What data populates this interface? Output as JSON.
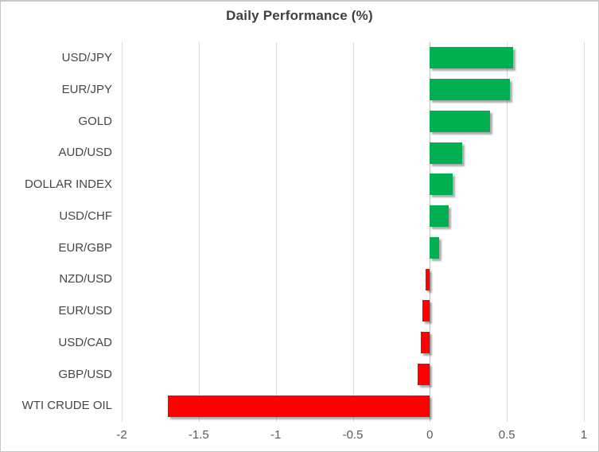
{
  "title": "Daily Performance (%)",
  "chart_data": {
    "type": "bar",
    "orientation": "horizontal",
    "title": "Daily Performance (%)",
    "categories": [
      "USD/JPY",
      "EUR/JPY",
      "GOLD",
      "AUD/USD",
      "DOLLAR INDEX",
      "USD/CHF",
      "EUR/GBP",
      "NZD/USD",
      "EUR/USD",
      "USD/CAD",
      "GBP/USD",
      "WTI CRUDE OIL"
    ],
    "values": [
      0.54,
      0.52,
      0.39,
      0.21,
      0.15,
      0.12,
      0.06,
      -0.03,
      -0.05,
      -0.06,
      -0.08,
      -1.7
    ],
    "xlim": [
      -2,
      1
    ],
    "x_ticks": [
      -2,
      -1.5,
      -1,
      -0.5,
      0,
      0.5,
      1
    ],
    "x_tick_labels": [
      "-2",
      "-1.5",
      "-1",
      "-0.5",
      "0",
      "0.5",
      "1"
    ],
    "grid": "vertical-gridlines-on",
    "legend": "none",
    "colors": {
      "positive": "#00b050",
      "negative": "#ff0000",
      "gridline": "#d9d9d9",
      "zero_line": "#bfbfbf",
      "title_text": "#3f3f3f",
      "label_text": "#464646",
      "tick_text": "#595959"
    }
  }
}
